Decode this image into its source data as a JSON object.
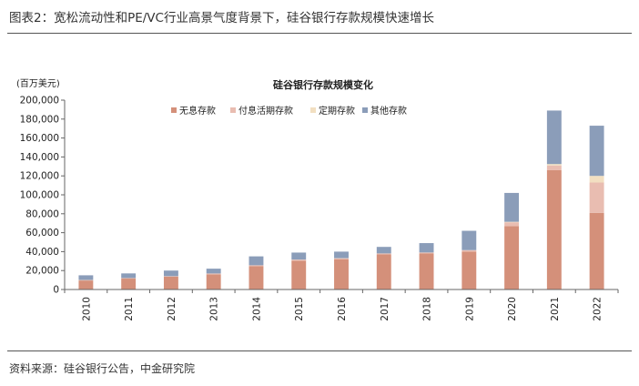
{
  "figure_title": "图表2：宽松流动性和PE/VC行业高景气度背景下，硅谷银行存款规模快速增长",
  "source_note": "资料来源：硅谷银行公告，中金研究院",
  "chart_data": {
    "type": "bar",
    "stacked": true,
    "title": "硅谷银行存款规模变化",
    "ylabel": "(百万美元)",
    "ylim": [
      0,
      200000
    ],
    "yticks": [
      0,
      20000,
      40000,
      60000,
      80000,
      100000,
      120000,
      140000,
      160000,
      180000,
      200000
    ],
    "ytick_labels": [
      "0",
      "20,000",
      "40,000",
      "60,000",
      "80,000",
      "100,000",
      "120,000",
      "140,000",
      "160,000",
      "180,000",
      "200,000"
    ],
    "categories": [
      "2010",
      "2011",
      "2012",
      "2013",
      "2014",
      "2015",
      "2016",
      "2017",
      "2018",
      "2019",
      "2020",
      "2021",
      "2022"
    ],
    "legend_position": "top-left",
    "grid": false,
    "series": [
      {
        "name": "无息存款",
        "color": "#D4907A",
        "values": [
          9500,
          11500,
          13500,
          16000,
          24500,
          30500,
          32000,
          37000,
          38000,
          40000,
          67000,
          126000,
          81000
        ]
      },
      {
        "name": "付息活期存款",
        "color": "#E9BDB1",
        "values": [
          500,
          500,
          500,
          800,
          1000,
          1000,
          1000,
          1000,
          1000,
          1500,
          4000,
          5000,
          32000
        ]
      },
      {
        "name": "定期存款",
        "color": "#F2DFC1",
        "values": [
          100,
          100,
          100,
          100,
          100,
          100,
          100,
          100,
          100,
          100,
          500,
          1500,
          7000
        ]
      },
      {
        "name": "其他存款",
        "color": "#8B9DB9",
        "values": [
          4900,
          4900,
          5900,
          5100,
          9400,
          7400,
          6900,
          6900,
          9900,
          20400,
          30500,
          56500,
          53000
        ]
      }
    ]
  }
}
